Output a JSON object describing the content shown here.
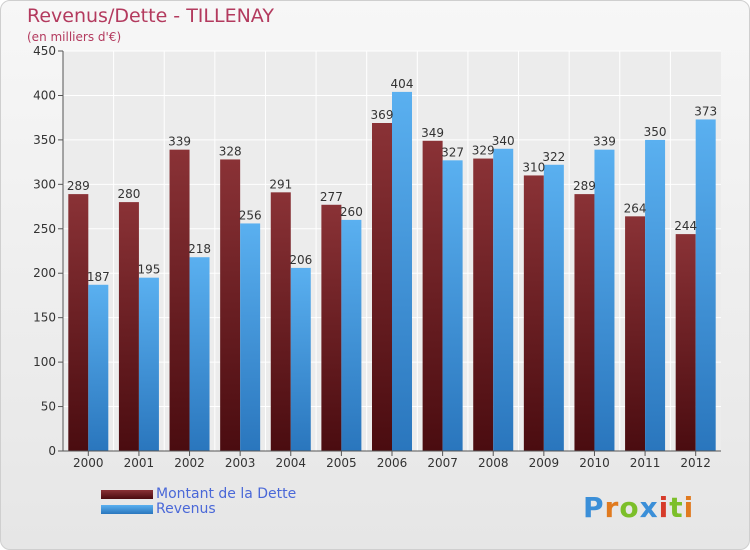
{
  "title": "Revenus/Dette - TILLENAY",
  "subtitle": "(en milliers d'€)",
  "colors": {
    "dette": "#6b1e22",
    "revenus": "#4da3e6",
    "title": "#b33a5e",
    "legend_text": "#4a68d8"
  },
  "logo": {
    "text": "Proxiti",
    "letters": [
      {
        "ch": "P",
        "color": "#3b8fd8"
      },
      {
        "ch": "r",
        "color": "#e07a1f"
      },
      {
        "ch": "o",
        "color": "#7cbf2a"
      },
      {
        "ch": "x",
        "color": "#3b8fd8"
      },
      {
        "ch": "i",
        "color": "#d63b2a"
      },
      {
        "ch": "t",
        "color": "#7cbf2a"
      },
      {
        "ch": "i",
        "color": "#e07a1f"
      }
    ]
  },
  "chart_data": {
    "type": "bar",
    "title": "Revenus/Dette - TILLENAY",
    "subtitle": "(en milliers d'€)",
    "categories": [
      "2000",
      "2001",
      "2002",
      "2003",
      "2004",
      "2005",
      "2006",
      "2007",
      "2008",
      "2009",
      "2010",
      "2011",
      "2012"
    ],
    "series": [
      {
        "name": "Montant de la Dette",
        "values": [
          289,
          280,
          339,
          328,
          291,
          277,
          369,
          349,
          329,
          310,
          289,
          264,
          244
        ]
      },
      {
        "name": "Revenus",
        "values": [
          187,
          195,
          218,
          256,
          206,
          260,
          404,
          327,
          340,
          322,
          339,
          350,
          373
        ]
      }
    ],
    "ylim": [
      0,
      450
    ],
    "yticks": [
      0,
      50,
      100,
      150,
      200,
      250,
      300,
      350,
      400,
      450
    ],
    "grid": true,
    "legend": "bottom-left"
  }
}
